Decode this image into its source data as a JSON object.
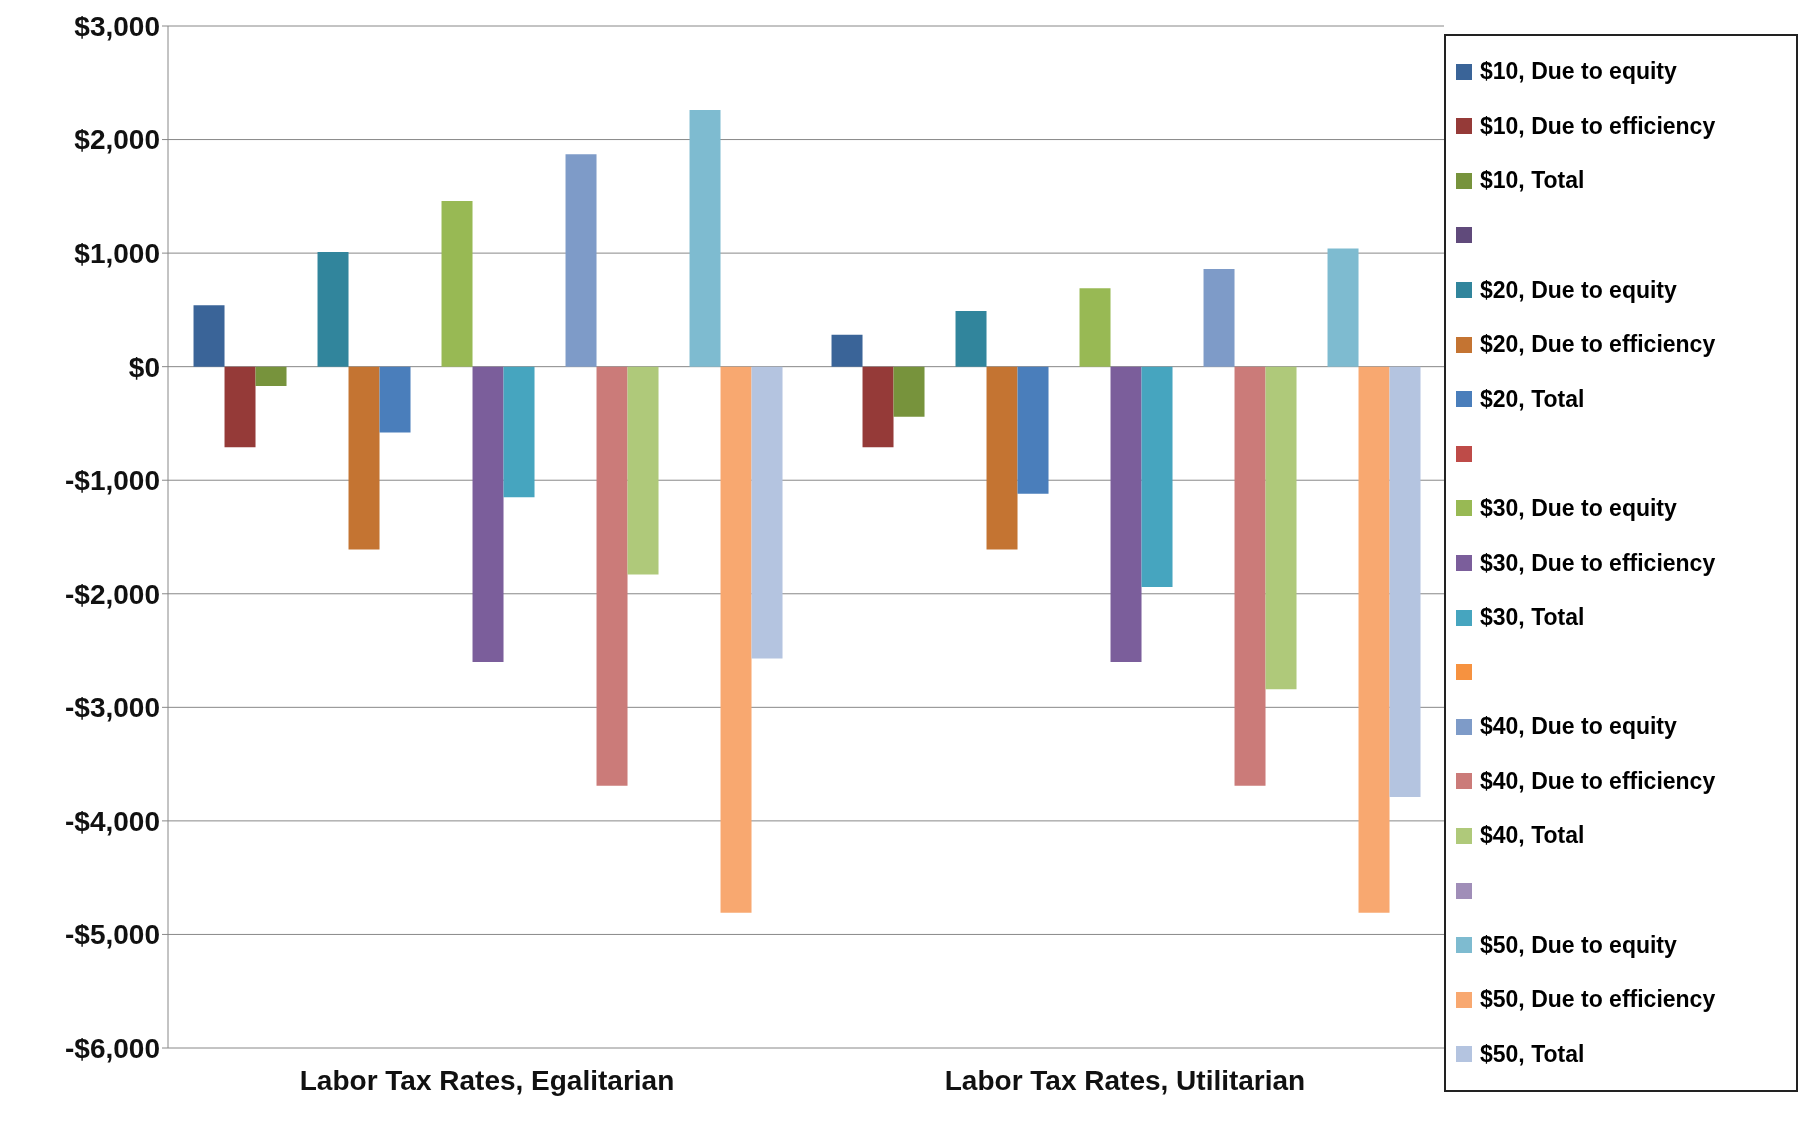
{
  "chart_data": {
    "type": "bar",
    "categories": [
      "Labor Tax Rates, Egalitarian",
      "Labor Tax Rates, Utilitarian"
    ],
    "series": [
      {
        "name": "$10, Due to equity",
        "color": "#3a6498",
        "values": [
          540,
          280
        ]
      },
      {
        "name": "$10, Due to efficiency",
        "color": "#953a38",
        "values": [
          -710,
          -710
        ]
      },
      {
        "name": "$10, Total",
        "color": "#77933c",
        "values": [
          -170,
          -440
        ]
      },
      {
        "color": "#604a7b",
        "values": [
          null,
          null
        ]
      },
      {
        "name": "$20, Due to equity",
        "color": "#31859c",
        "values": [
          1010,
          490
        ]
      },
      {
        "name": "$20, Due to efficiency",
        "color": "#c47432",
        "values": [
          -1610,
          -1610
        ]
      },
      {
        "name": "$20, Total",
        "color": "#4a7ebb",
        "values": [
          -580,
          -1120
        ]
      },
      {
        "color": "#be4b48",
        "values": [
          null,
          null
        ]
      },
      {
        "name": "$30, Due to equity",
        "color": "#98b954",
        "values": [
          1460,
          690
        ]
      },
      {
        "name": "$30, Due to efficiency",
        "color": "#7b5e9b",
        "values": [
          -2600,
          -2600
        ]
      },
      {
        "name": "$30, Total",
        "color": "#46a5bf",
        "values": [
          -1150,
          -1940
        ]
      },
      {
        "color": "#f69240",
        "values": [
          null,
          null
        ]
      },
      {
        "name": "$40, Due to equity",
        "color": "#7e9bc8",
        "values": [
          1870,
          860
        ]
      },
      {
        "name": "$40, Due to efficiency",
        "color": "#cb7b79",
        "values": [
          -3690,
          -3690
        ]
      },
      {
        "name": "$40, Total",
        "color": "#afc97a",
        "values": [
          -1830,
          -2840
        ]
      },
      {
        "color": "#a08eb8",
        "values": [
          null,
          null
        ]
      },
      {
        "name": "$50, Due to equity",
        "color": "#7ebbd0",
        "values": [
          2260,
          1040
        ]
      },
      {
        "name": "$50, Due to efficiency",
        "color": "#f8a870",
        "values": [
          -4810,
          -4810
        ]
      },
      {
        "name": "$50, Total",
        "color": "#b4c4e0",
        "values": [
          -2570,
          -3790
        ]
      }
    ],
    "ylim": [
      -6000,
      3000
    ],
    "yticks": [
      {
        "value": -6000,
        "label": "-$6,000"
      },
      {
        "value": -5000,
        "label": "-$5,000"
      },
      {
        "value": -4000,
        "label": "-$4,000"
      },
      {
        "value": -3000,
        "label": "-$3,000"
      },
      {
        "value": -2000,
        "label": "-$2,000"
      },
      {
        "value": -1000,
        "label": "-$1,000"
      },
      {
        "value": 0,
        "label": "$0"
      },
      {
        "value": 1000,
        "label": "$1,000"
      },
      {
        "value": 2000,
        "label": "$2,000"
      },
      {
        "value": 3000,
        "label": "$3,000"
      }
    ],
    "grid": "y",
    "legend": "right"
  }
}
